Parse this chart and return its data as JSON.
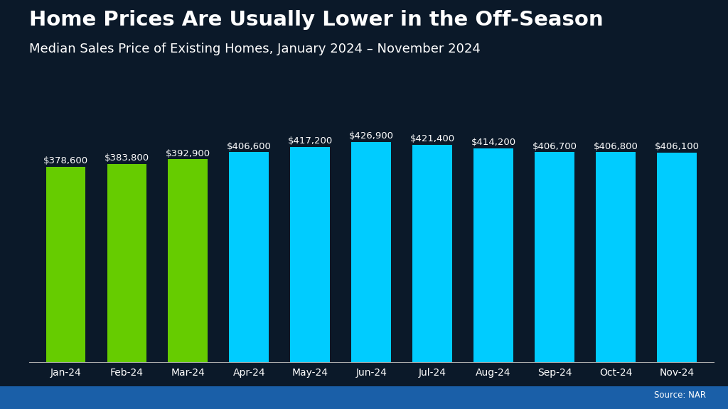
{
  "categories": [
    "Jan-24",
    "Feb-24",
    "Mar-24",
    "Apr-24",
    "May-24",
    "Jun-24",
    "Jul-24",
    "Aug-24",
    "Sep-24",
    "Oct-24",
    "Nov-24"
  ],
  "values": [
    378600,
    383800,
    392900,
    406600,
    417200,
    426900,
    421400,
    414200,
    406700,
    406800,
    406100
  ],
  "labels": [
    "$378,600",
    "$383,800",
    "$392,900",
    "$406,600",
    "$417,200",
    "$426,900",
    "$421,400",
    "$414,200",
    "$406,700",
    "$406,800",
    "$406,100"
  ],
  "bar_colors": [
    "#66CC00",
    "#66CC00",
    "#66CC00",
    "#00CCFF",
    "#00CCFF",
    "#00CCFF",
    "#00CCFF",
    "#00CCFF",
    "#00CCFF",
    "#00CCFF",
    "#00CCFF"
  ],
  "title": "Home Prices Are Usually Lower in the Off-Season",
  "subtitle": "Median Sales Price of Existing Homes, January 2024 – November 2024",
  "source": "Source: NAR",
  "bg_color": "#0b1929",
  "text_color": "#ffffff",
  "title_fontsize": 21,
  "subtitle_fontsize": 13,
  "label_fontsize": 9.5,
  "tick_fontsize": 10,
  "ylim": [
    0,
    460000
  ],
  "bar_width": 0.65,
  "stripe_color": "#1a5fa8"
}
